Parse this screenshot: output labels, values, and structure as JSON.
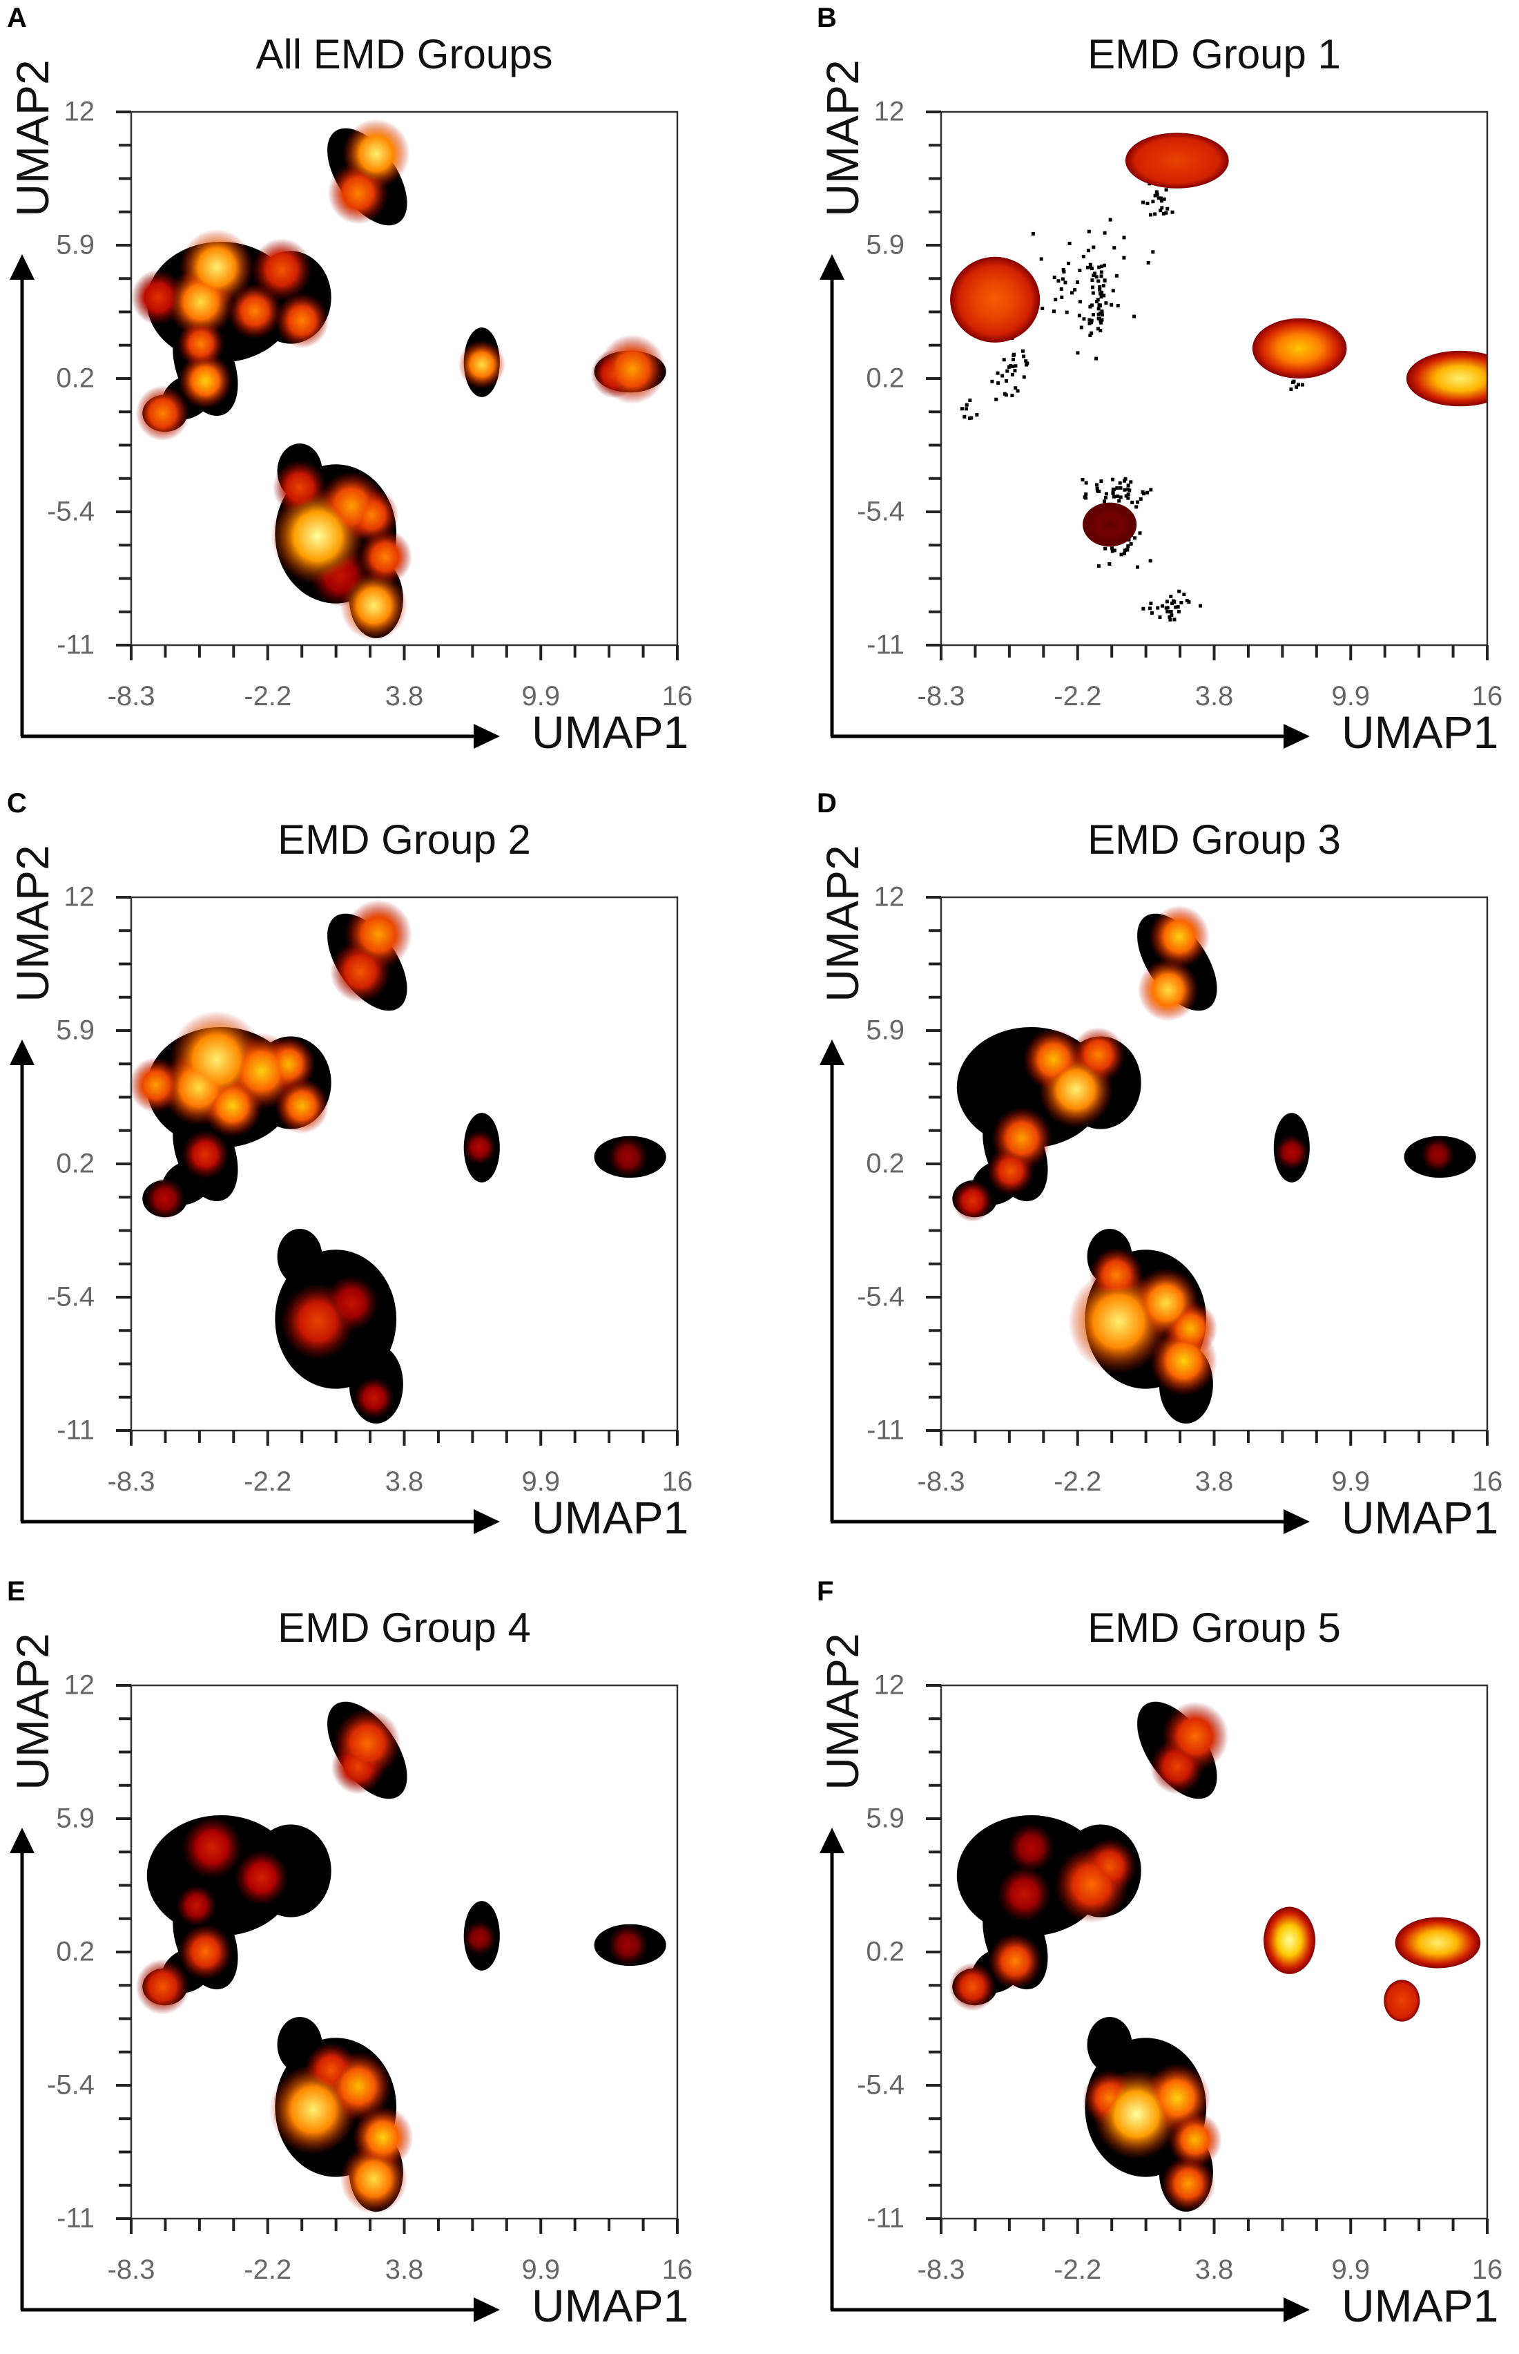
{
  "colormap": [
    "#000000",
    "#5a0000",
    "#b00000",
    "#e03000",
    "#ff7000",
    "#ffcc00",
    "#ffffa0"
  ],
  "chart_data": [
    {
      "panel_label": "A",
      "type": "heatmap",
      "title": "All EMD Groups",
      "xlabel": "UMAP1",
      "ylabel": "UMAP2",
      "xlim": [
        -8.3,
        16
      ],
      "ylim": [
        -11,
        12
      ],
      "xticks": [
        "-8.3",
        "-2.2",
        "3.8",
        "9.9",
        "16"
      ],
      "yticks": [
        "12",
        "5.9",
        "0.2",
        "-5.4",
        "-11"
      ],
      "regions": [
        [
          2.2,
          9.2,
          1.3,
          2.4,
          35
        ],
        [
          -4.3,
          3.8,
          3.3,
          2.6,
          0
        ],
        [
          -1.2,
          4.0,
          1.8,
          2.0,
          0
        ],
        [
          -5.0,
          1.0,
          1.3,
          2.2,
          20
        ],
        [
          -6.8,
          -1.0,
          1.0,
          0.8,
          0
        ],
        [
          -5.8,
          -0.3,
          1.2,
          0.9,
          30
        ],
        [
          7.3,
          1.2,
          0.8,
          1.5,
          0
        ],
        [
          13.9,
          0.8,
          1.6,
          0.9,
          0
        ],
        [
          0.8,
          -6.2,
          2.7,
          3.0,
          0
        ],
        [
          2.6,
          -9.0,
          1.2,
          1.7,
          0
        ],
        [
          -0.8,
          -3.5,
          1.0,
          1.2,
          0
        ]
      ],
      "hotspots": [
        [
          2.6,
          10.2,
          1.0,
          0.95
        ],
        [
          1.8,
          8.5,
          0.9,
          0.7
        ],
        [
          -4.5,
          5.3,
          1.1,
          0.95
        ],
        [
          -5.2,
          3.8,
          1.0,
          0.9
        ],
        [
          -2.8,
          3.4,
          0.8,
          0.7
        ],
        [
          -0.7,
          3.0,
          0.8,
          0.7
        ],
        [
          -1.6,
          5.2,
          0.9,
          0.6
        ],
        [
          -7.1,
          4.0,
          0.8,
          0.5
        ],
        [
          -5.0,
          0.4,
          0.8,
          0.85
        ],
        [
          -6.9,
          -1.0,
          0.8,
          0.7
        ],
        [
          -5.2,
          2.0,
          0.7,
          0.7
        ],
        [
          7.3,
          1.1,
          0.7,
          0.9
        ],
        [
          14.0,
          0.9,
          1.0,
          0.75
        ],
        [
          13.2,
          0.7,
          0.7,
          0.55
        ],
        [
          0.0,
          -6.3,
          1.4,
          1.0
        ],
        [
          1.5,
          -5.0,
          1.0,
          0.75
        ],
        [
          2.4,
          -5.4,
          0.8,
          0.7
        ],
        [
          2.5,
          -9.3,
          1.0,
          0.95
        ],
        [
          3.0,
          -7.2,
          0.8,
          0.7
        ],
        [
          -0.8,
          -4.2,
          0.8,
          0.55
        ],
        [
          1.0,
          -8.0,
          0.9,
          0.4
        ]
      ],
      "ellipses": [],
      "scatter": []
    },
    {
      "panel_label": "B",
      "type": "heatmap",
      "title": "EMD Group 1",
      "xlabel": "UMAP1",
      "ylabel": "UMAP2",
      "xlim": [
        -8.3,
        16
      ],
      "ylim": [
        -11,
        12
      ],
      "xticks": [
        "-8.3",
        "-2.2",
        "3.8",
        "9.9",
        "16"
      ],
      "yticks": [
        "12",
        "5.9",
        "0.2",
        "-5.4",
        "-11"
      ],
      "regions": [],
      "hotspots": [],
      "ellipses": [
        [
          2.2,
          9.9,
          2.3,
          1.2,
          0.55
        ],
        [
          -5.9,
          3.9,
          2.0,
          1.85,
          0.62
        ],
        [
          7.65,
          1.8,
          2.1,
          1.3,
          0.82
        ],
        [
          14.8,
          0.5,
          2.4,
          1.2,
          0.95
        ],
        [
          -0.8,
          -5.8,
          1.2,
          0.95,
          0.18
        ]
      ],
      "scatter": [
        [
          -2.25,
          4.5,
          2.0,
          1.8,
          60
        ],
        [
          -1.45,
          3.9,
          0.3,
          1.5,
          40
        ],
        [
          -5.2,
          0.9,
          0.6,
          1.1,
          30
        ],
        [
          -7.0,
          -0.8,
          0.3,
          0.4,
          8
        ],
        [
          1.3,
          8.2,
          0.4,
          0.5,
          20
        ],
        [
          -0.65,
          -4.4,
          1.2,
          0.5,
          45
        ],
        [
          -0.3,
          -6.7,
          1.0,
          0.8,
          25
        ],
        [
          1.9,
          -9.3,
          0.8,
          0.4,
          30
        ],
        [
          7.5,
          0.3,
          0.3,
          0.3,
          6
        ]
      ]
    },
    {
      "panel_label": "C",
      "type": "heatmap",
      "title": "EMD Group 2",
      "xlabel": "UMAP1",
      "ylabel": "UMAP2",
      "xlim": [
        -8.3,
        16
      ],
      "ylim": [
        -11,
        12
      ],
      "xticks": [
        "-8.3",
        "-2.2",
        "3.8",
        "9.9",
        "16"
      ],
      "yticks": [
        "12",
        "5.9",
        "0.2",
        "-5.4",
        "-11"
      ],
      "regions": [
        [
          2.2,
          9.2,
          1.3,
          2.4,
          35
        ],
        [
          -4.3,
          3.8,
          3.3,
          2.6,
          0
        ],
        [
          -1.2,
          4.0,
          1.8,
          2.0,
          0
        ],
        [
          -5.0,
          1.0,
          1.3,
          2.2,
          20
        ],
        [
          -6.8,
          -1.0,
          1.0,
          0.8,
          0
        ],
        [
          -5.8,
          -0.3,
          1.2,
          0.9,
          30
        ],
        [
          7.3,
          1.2,
          0.8,
          1.5,
          0
        ],
        [
          13.9,
          0.8,
          1.6,
          0.9,
          0
        ],
        [
          0.8,
          -6.2,
          2.7,
          3.0,
          0
        ],
        [
          2.6,
          -9.0,
          1.2,
          1.7,
          0
        ],
        [
          -0.8,
          -3.5,
          1.0,
          1.2,
          0
        ]
      ],
      "hotspots": [
        [
          -4.5,
          5.0,
          1.4,
          0.95
        ],
        [
          -5.3,
          3.8,
          1.1,
          0.9
        ],
        [
          -2.5,
          4.5,
          1.1,
          0.85
        ],
        [
          -1.3,
          4.8,
          0.8,
          0.8
        ],
        [
          -0.7,
          3.0,
          0.8,
          0.8
        ],
        [
          -7.2,
          3.9,
          0.8,
          0.75
        ],
        [
          -3.8,
          3.0,
          0.9,
          0.85
        ],
        [
          -5.0,
          0.9,
          0.7,
          0.5
        ],
        [
          -6.8,
          -1.0,
          0.6,
          0.35
        ],
        [
          2.7,
          10.4,
          1.0,
          0.75
        ],
        [
          1.9,
          8.8,
          0.9,
          0.6
        ],
        [
          7.2,
          1.2,
          0.5,
          0.35
        ],
        [
          13.8,
          0.8,
          0.6,
          0.3
        ],
        [
          0.0,
          -6.3,
          1.1,
          0.55
        ],
        [
          2.5,
          -9.6,
          0.6,
          0.4
        ],
        [
          1.5,
          -5.5,
          0.8,
          0.4
        ]
      ],
      "ellipses": [],
      "scatter": []
    },
    {
      "panel_label": "D",
      "type": "heatmap",
      "title": "EMD Group 3",
      "xlabel": "UMAP1",
      "ylabel": "UMAP2",
      "xlim": [
        -8.3,
        16
      ],
      "ylim": [
        -11,
        12
      ],
      "xticks": [
        "-8.3",
        "-2.2",
        "3.8",
        "9.9",
        "16"
      ],
      "yticks": [
        "12",
        "5.9",
        "0.2",
        "-5.4",
        "-11"
      ],
      "regions": [
        [
          2.2,
          9.2,
          1.3,
          2.4,
          35
        ],
        [
          -4.3,
          3.8,
          3.3,
          2.6,
          0
        ],
        [
          -1.2,
          4.0,
          1.8,
          2.0,
          0
        ],
        [
          -5.0,
          1.0,
          1.3,
          2.2,
          20
        ],
        [
          -6.8,
          -1.0,
          1.0,
          0.8,
          0
        ],
        [
          -5.8,
          -0.3,
          1.2,
          0.9,
          30
        ],
        [
          7.3,
          1.2,
          0.8,
          1.5,
          0
        ],
        [
          13.9,
          0.8,
          1.6,
          0.9,
          0
        ],
        [
          0.8,
          -6.2,
          2.7,
          3.0,
          0
        ],
        [
          2.6,
          -9.0,
          1.2,
          1.7,
          0
        ],
        [
          -0.8,
          -3.5,
          1.0,
          1.2,
          0
        ]
      ],
      "hotspots": [
        [
          2.3,
          10.3,
          0.9,
          0.85
        ],
        [
          1.8,
          8.0,
          0.9,
          0.9
        ],
        [
          -2.3,
          3.7,
          1.1,
          0.95
        ],
        [
          -3.3,
          5.0,
          0.9,
          0.8
        ],
        [
          -1.3,
          5.2,
          0.8,
          0.7
        ],
        [
          -4.7,
          1.6,
          0.9,
          0.75
        ],
        [
          -5.2,
          0.2,
          0.7,
          0.6
        ],
        [
          -6.9,
          -1.1,
          0.6,
          0.5
        ],
        [
          7.3,
          1.0,
          0.5,
          0.35
        ],
        [
          13.8,
          0.9,
          0.5,
          0.3
        ],
        [
          -0.4,
          -6.3,
          1.5,
          0.95
        ],
        [
          1.7,
          -5.5,
          1.0,
          0.9
        ],
        [
          2.5,
          -8.0,
          1.0,
          0.85
        ],
        [
          2.8,
          -6.6,
          0.8,
          0.8
        ],
        [
          -0.5,
          -4.3,
          0.8,
          0.7
        ]
      ],
      "ellipses": [],
      "scatter": []
    },
    {
      "panel_label": "E",
      "type": "heatmap",
      "title": "EMD Group 4",
      "xlabel": "UMAP1",
      "ylabel": "UMAP2",
      "xlim": [
        -8.3,
        16
      ],
      "ylim": [
        -11,
        12
      ],
      "xticks": [
        "-8.3",
        "-2.2",
        "3.8",
        "9.9",
        "16"
      ],
      "yticks": [
        "12",
        "5.9",
        "0.2",
        "-5.4",
        "-11"
      ],
      "regions": [
        [
          2.2,
          9.2,
          1.3,
          2.4,
          35
        ],
        [
          -4.3,
          3.8,
          3.3,
          2.6,
          0
        ],
        [
          -1.2,
          4.0,
          1.8,
          2.0,
          0
        ],
        [
          -5.0,
          1.0,
          1.3,
          2.2,
          20
        ],
        [
          -6.8,
          -1.0,
          1.0,
          0.8,
          0
        ],
        [
          -5.8,
          -0.3,
          1.2,
          0.9,
          30
        ],
        [
          7.3,
          1.2,
          0.8,
          1.5,
          0
        ],
        [
          13.9,
          0.8,
          1.6,
          0.9,
          0
        ],
        [
          0.8,
          -6.2,
          2.7,
          3.0,
          0
        ],
        [
          2.6,
          -9.0,
          1.2,
          1.7,
          0
        ],
        [
          -0.8,
          -3.5,
          1.0,
          1.2,
          0
        ]
      ],
      "hotspots": [
        [
          2.2,
          9.5,
          1.0,
          0.65
        ],
        [
          1.8,
          8.5,
          0.8,
          0.55
        ],
        [
          -4.7,
          5.0,
          0.9,
          0.45
        ],
        [
          -2.5,
          3.7,
          0.8,
          0.45
        ],
        [
          -5.0,
          0.5,
          0.8,
          0.65
        ],
        [
          -6.9,
          -1.0,
          0.8,
          0.6
        ],
        [
          -5.4,
          2.5,
          0.6,
          0.4
        ],
        [
          7.2,
          1.1,
          0.5,
          0.3
        ],
        [
          13.8,
          0.8,
          0.6,
          0.3
        ],
        [
          -0.2,
          -6.3,
          1.3,
          0.95
        ],
        [
          1.8,
          -5.3,
          1.0,
          0.8
        ],
        [
          2.5,
          -9.3,
          1.0,
          0.9
        ],
        [
          2.9,
          -7.5,
          0.9,
          0.85
        ],
        [
          0.6,
          -4.6,
          0.8,
          0.6
        ]
      ],
      "ellipses": [],
      "scatter": []
    },
    {
      "panel_label": "F",
      "type": "heatmap",
      "title": "EMD Group 5",
      "xlabel": "UMAP1",
      "ylabel": "UMAP2",
      "xlim": [
        -8.3,
        16
      ],
      "ylim": [
        -11,
        12
      ],
      "xticks": [
        "-8.3",
        "-2.2",
        "3.8",
        "9.9",
        "16"
      ],
      "yticks": [
        "12",
        "5.9",
        "0.2",
        "-5.4",
        "-11"
      ],
      "regions": [
        [
          2.2,
          9.2,
          1.3,
          2.4,
          35
        ],
        [
          -4.3,
          3.8,
          3.3,
          2.6,
          0
        ],
        [
          -1.2,
          4.0,
          1.8,
          2.0,
          0
        ],
        [
          -5.0,
          1.0,
          1.3,
          2.2,
          20
        ],
        [
          -6.8,
          -1.0,
          1.0,
          0.8,
          0
        ],
        [
          -5.8,
          -0.3,
          1.2,
          0.9,
          30
        ],
        [
          0.8,
          -6.2,
          2.7,
          3.0,
          0
        ],
        [
          2.6,
          -9.0,
          1.2,
          1.7,
          0
        ],
        [
          -0.8,
          -3.5,
          1.0,
          1.2,
          0
        ]
      ],
      "hotspots": [
        [
          3.0,
          9.8,
          1.0,
          0.65
        ],
        [
          2.2,
          8.5,
          0.8,
          0.55
        ],
        [
          -4.3,
          5.0,
          0.7,
          0.35
        ],
        [
          -1.6,
          3.4,
          1.1,
          0.65
        ],
        [
          -0.8,
          4.2,
          0.8,
          0.6
        ],
        [
          -4.6,
          3.0,
          0.8,
          0.4
        ],
        [
          -5.0,
          0.1,
          0.8,
          0.7
        ],
        [
          -6.9,
          -1.0,
          0.7,
          0.6
        ],
        [
          0.4,
          -6.5,
          1.3,
          1.0
        ],
        [
          2.2,
          -5.8,
          1.0,
          0.85
        ],
        [
          3.0,
          -7.6,
          0.8,
          0.8
        ],
        [
          2.7,
          -9.5,
          0.8,
          0.75
        ],
        [
          -0.8,
          -5.8,
          0.8,
          0.7
        ]
      ],
      "ellipses": [
        [
          7.2,
          1.0,
          1.15,
          1.45,
          1.0
        ],
        [
          13.8,
          0.9,
          1.9,
          1.1,
          0.95
        ],
        [
          12.2,
          -1.6,
          0.8,
          0.9,
          0.55
        ]
      ],
      "scatter": []
    }
  ]
}
